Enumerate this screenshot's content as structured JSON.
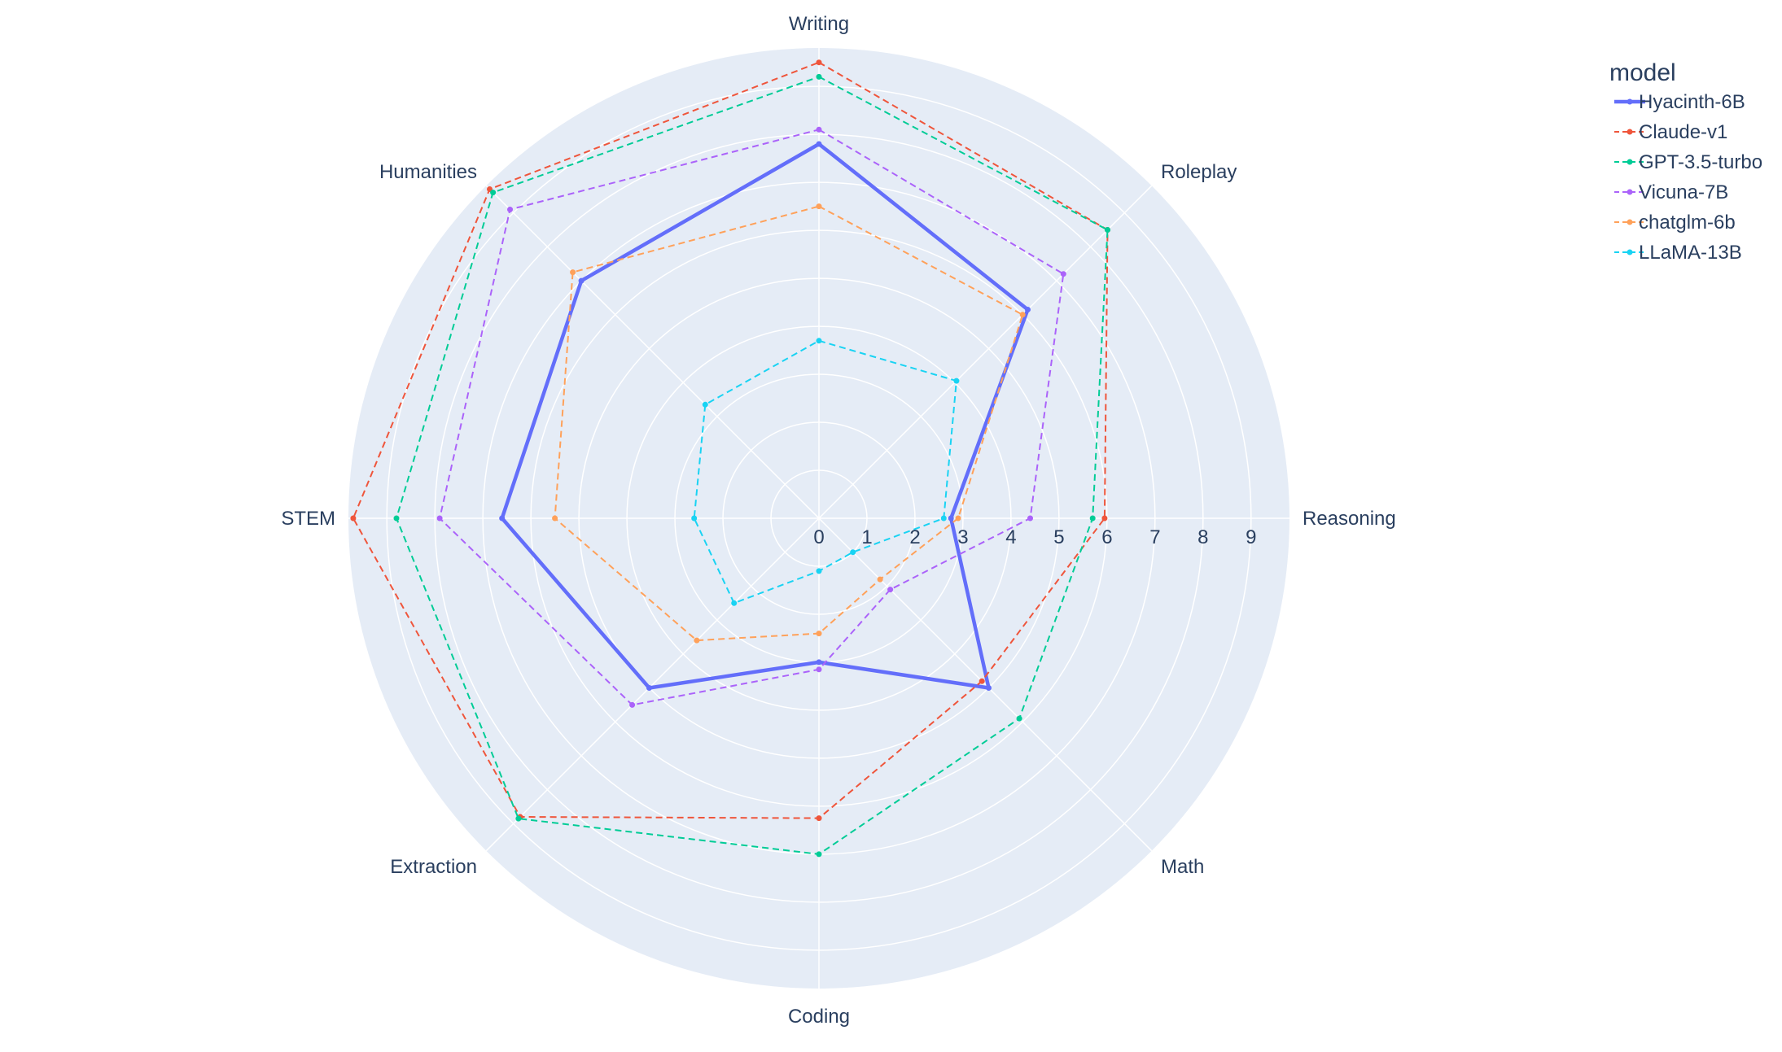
{
  "chart_data": {
    "type": "radar",
    "title": "",
    "radial_range": [
      0,
      9.8
    ],
    "radial_ticks": [
      0,
      1,
      2,
      3,
      4,
      5,
      6,
      7,
      8,
      9
    ],
    "grid": true,
    "legend_position": "top-right",
    "legend_title": "model",
    "categories": [
      "Writing",
      "Roleplay",
      "Reasoning",
      "Math",
      "Coding",
      "Extraction",
      "STEM",
      "Humanities"
    ],
    "series": [
      {
        "name": "Hyacinth-6B",
        "color": "#636efa",
        "dash": "solid",
        "values": [
          7.8,
          6.15,
          2.75,
          5.0,
          3.0,
          5.0,
          6.6,
          7.0
        ]
      },
      {
        "name": "Claude-v1",
        "color": "#ef553b",
        "dash": "dashed",
        "values": [
          9.5,
          8.5,
          5.95,
          4.8,
          6.25,
          8.8,
          9.7,
          9.7
        ]
      },
      {
        "name": "GPT-3.5-turbo",
        "color": "#00cc96",
        "dash": "dashed",
        "values": [
          9.2,
          8.5,
          5.7,
          5.9,
          7.0,
          8.85,
          8.8,
          9.6
        ]
      },
      {
        "name": "Vicuna-7B",
        "color": "#ab63fa",
        "dash": "dashed",
        "values": [
          8.1,
          7.2,
          4.4,
          2.1,
          3.15,
          5.5,
          7.9,
          9.1
        ]
      },
      {
        "name": "chatglm-6b",
        "color": "#ffa15a",
        "dash": "dashed",
        "values": [
          6.5,
          6.0,
          2.9,
          1.8,
          2.4,
          3.6,
          5.5,
          7.25
        ]
      },
      {
        "name": "LLaMA-13B",
        "color": "#19d3f3",
        "dash": "dashed",
        "values": [
          3.7,
          4.05,
          2.6,
          1.0,
          1.1,
          2.5,
          2.6,
          3.35
        ]
      }
    ]
  }
}
